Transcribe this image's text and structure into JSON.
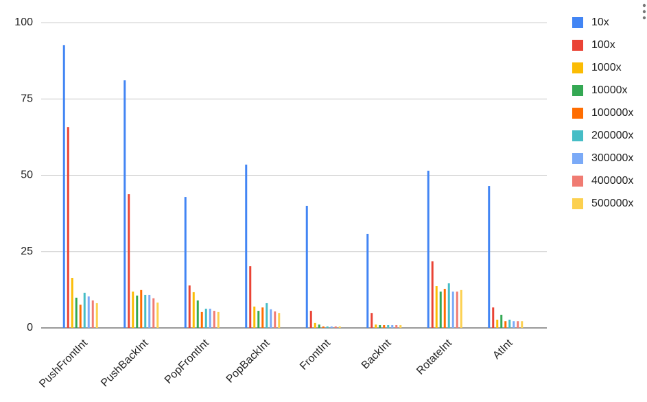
{
  "chart_data": {
    "type": "bar",
    "categories": [
      "PushFrontInt",
      "PushBackInt",
      "PopFrontInt",
      "PopBackInt",
      "FrontInt",
      "BackInt",
      "RotateInt",
      "AtInt"
    ],
    "series": [
      {
        "name": "10x",
        "color": "#4285f4",
        "values": [
          92.6,
          81.1,
          42.9,
          53.5,
          40,
          30.8,
          51.5,
          46.5
        ]
      },
      {
        "name": "100x",
        "color": "#ea4335",
        "values": [
          65.8,
          43.8,
          13.9,
          20.2,
          5.6,
          4.9,
          21.8,
          6.7
        ]
      },
      {
        "name": "1000x",
        "color": "#fbbc04",
        "values": [
          16.4,
          11.9,
          11.7,
          7.0,
          1.6,
          1.1,
          13.7,
          2.7
        ]
      },
      {
        "name": "10000x",
        "color": "#34a853",
        "values": [
          9.9,
          10.6,
          9.0,
          5.6,
          1.1,
          0.9,
          11.9,
          4.3
        ]
      },
      {
        "name": "100000x",
        "color": "#ff6d01",
        "values": [
          7.6,
          12.4,
          5.2,
          6.7,
          0.5,
          0.9,
          12.8,
          2.2
        ]
      },
      {
        "name": "200000x",
        "color": "#46bdc6",
        "values": [
          11.5,
          10.8,
          6.3,
          8.1,
          0.5,
          0.9,
          14.6,
          2.7
        ]
      },
      {
        "name": "300000x",
        "color": "#7baaf7",
        "values": [
          10.3,
          10.8,
          6.3,
          6.1,
          0.5,
          0.9,
          11.9,
          2.2
        ]
      },
      {
        "name": "400000x",
        "color": "#f07b72",
        "values": [
          9.0,
          9.7,
          5.6,
          5.4,
          0.5,
          0.9,
          11.9,
          2.2
        ]
      },
      {
        "name": "500000x",
        "color": "#fcd04f",
        "values": [
          8.1,
          8.3,
          5.2,
          4.9,
          0.5,
          0.9,
          12.4,
          2.2
        ]
      }
    ],
    "ylim": [
      0,
      100
    ],
    "yticks": [
      0,
      25,
      50,
      75,
      100
    ],
    "grid": true,
    "legend": "right"
  }
}
